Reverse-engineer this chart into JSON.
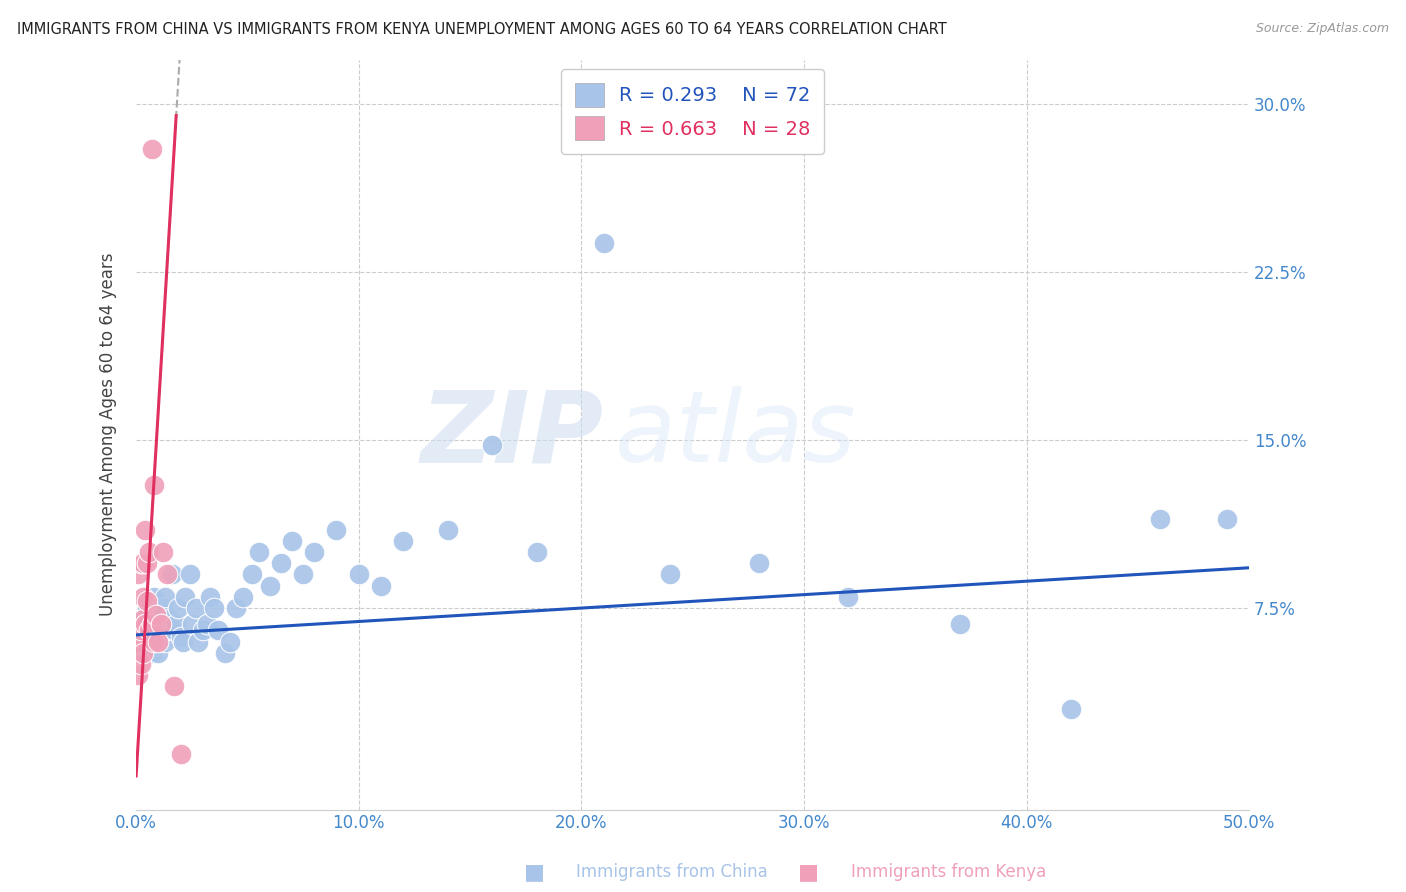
{
  "title": "IMMIGRANTS FROM CHINA VS IMMIGRANTS FROM KENYA UNEMPLOYMENT AMONG AGES 60 TO 64 YEARS CORRELATION CHART",
  "source": "Source: ZipAtlas.com",
  "ylabel": "Unemployment Among Ages 60 to 64 years",
  "xlim": [
    0.0,
    0.5
  ],
  "ylim": [
    -0.015,
    0.32
  ],
  "xticks": [
    0.0,
    0.1,
    0.2,
    0.3,
    0.4,
    0.5
  ],
  "xtick_labels": [
    "0.0%",
    "10.0%",
    "20.0%",
    "30.0%",
    "40.0%",
    "50.0%"
  ],
  "yticks": [
    0.075,
    0.15,
    0.225,
    0.3
  ],
  "ytick_labels": [
    "7.5%",
    "15.0%",
    "22.5%",
    "30.0%"
  ],
  "legend_china": "Immigrants from China",
  "legend_kenya": "Immigrants from Kenya",
  "R_china": "0.293",
  "N_china": "72",
  "R_kenya": "0.663",
  "N_kenya": "28",
  "color_china": "#a8c4e8",
  "color_kenya": "#f0a0b8",
  "trend_china_color": "#2255bb",
  "trend_kenya_color": "#e03060",
  "watermark_zip": "ZIP",
  "watermark_atlas": "atlas",
  "background_color": "#ffffff",
  "grid_color": "#cccccc",
  "china_points_x": [
    0.001,
    0.002,
    0.003,
    0.003,
    0.004,
    0.004,
    0.005,
    0.005,
    0.005,
    0.006,
    0.006,
    0.006,
    0.007,
    0.007,
    0.007,
    0.008,
    0.008,
    0.009,
    0.009,
    0.01,
    0.01,
    0.01,
    0.011,
    0.011,
    0.012,
    0.012,
    0.013,
    0.013,
    0.014,
    0.015,
    0.016,
    0.017,
    0.018,
    0.019,
    0.02,
    0.021,
    0.022,
    0.024,
    0.025,
    0.027,
    0.028,
    0.03,
    0.032,
    0.033,
    0.035,
    0.037,
    0.04,
    0.042,
    0.045,
    0.048,
    0.052,
    0.055,
    0.06,
    0.065,
    0.07,
    0.075,
    0.08,
    0.09,
    0.1,
    0.11,
    0.12,
    0.14,
    0.16,
    0.18,
    0.21,
    0.24,
    0.28,
    0.32,
    0.37,
    0.42,
    0.46,
    0.49
  ],
  "china_points_y": [
    0.065,
    0.06,
    0.055,
    0.07,
    0.065,
    0.055,
    0.068,
    0.06,
    0.075,
    0.062,
    0.058,
    0.07,
    0.055,
    0.065,
    0.072,
    0.058,
    0.08,
    0.065,
    0.068,
    0.06,
    0.075,
    0.055,
    0.07,
    0.065,
    0.068,
    0.075,
    0.06,
    0.08,
    0.065,
    0.07,
    0.09,
    0.065,
    0.068,
    0.075,
    0.062,
    0.06,
    0.08,
    0.09,
    0.068,
    0.075,
    0.06,
    0.065,
    0.068,
    0.08,
    0.075,
    0.065,
    0.055,
    0.06,
    0.075,
    0.08,
    0.09,
    0.1,
    0.085,
    0.095,
    0.105,
    0.09,
    0.1,
    0.11,
    0.09,
    0.085,
    0.105,
    0.11,
    0.148,
    0.1,
    0.238,
    0.09,
    0.095,
    0.08,
    0.068,
    0.03,
    0.115,
    0.115
  ],
  "kenya_points_x": [
    0.0005,
    0.001,
    0.001,
    0.001,
    0.002,
    0.002,
    0.002,
    0.003,
    0.003,
    0.003,
    0.003,
    0.004,
    0.004,
    0.005,
    0.005,
    0.006,
    0.006,
    0.007,
    0.007,
    0.008,
    0.008,
    0.009,
    0.01,
    0.011,
    0.012,
    0.014,
    0.017,
    0.02
  ],
  "kenya_points_y": [
    0.062,
    0.045,
    0.06,
    0.09,
    0.05,
    0.065,
    0.095,
    0.055,
    0.07,
    0.08,
    0.095,
    0.068,
    0.11,
    0.078,
    0.095,
    0.065,
    0.1,
    0.068,
    0.28,
    0.06,
    0.13,
    0.072,
    0.06,
    0.068,
    0.1,
    0.09,
    0.04,
    0.01
  ],
  "kenya_trend_x0": 0.0,
  "kenya_trend_x1": 0.018,
  "china_trend_x0": 0.0,
  "china_trend_x1": 0.5,
  "china_trend_y0": 0.063,
  "china_trend_y1": 0.093,
  "kenya_trend_y0": 0.0,
  "kenya_trend_y1": 0.295
}
